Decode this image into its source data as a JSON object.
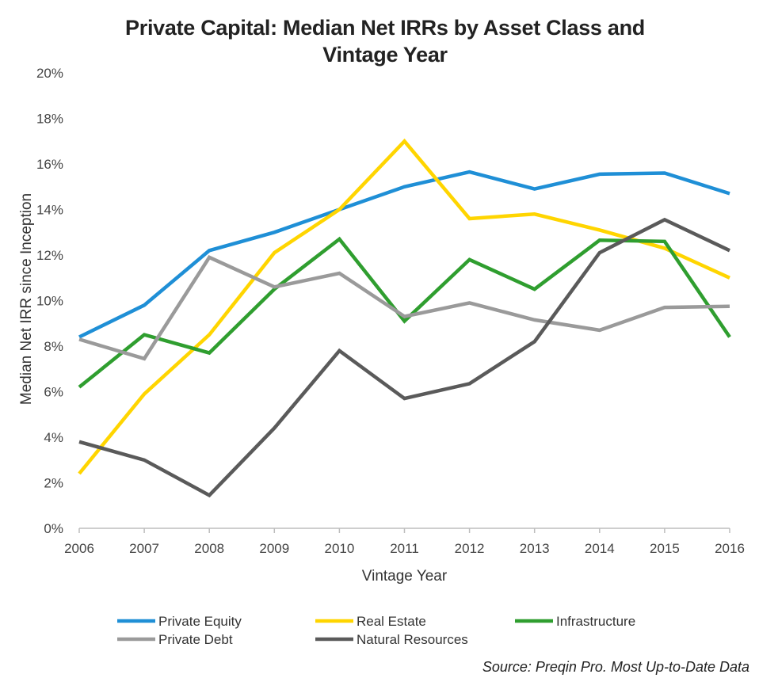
{
  "chart_data": {
    "type": "line",
    "title_lines": [
      "Private Capital: Median Net IRRs by Asset Class and",
      "Vintage Year"
    ],
    "xlabel": "Vintage Year",
    "ylabel": "Median Net IRR since Inception",
    "x": [
      "2006",
      "2007",
      "2008",
      "2009",
      "2010",
      "2011",
      "2012",
      "2013",
      "2014",
      "2015",
      "2016"
    ],
    "ylim": [
      0,
      20
    ],
    "yticks": [
      0,
      2,
      4,
      6,
      8,
      10,
      12,
      14,
      16,
      18,
      20
    ],
    "ytick_suffix": "%",
    "grid": false,
    "legend_position": "bottom",
    "series": [
      {
        "name": "Private Equity",
        "color": "#1f8fd6",
        "values": [
          8.4,
          9.8,
          12.2,
          13.0,
          14.0,
          15.0,
          15.65,
          14.9,
          15.55,
          15.6,
          14.7
        ]
      },
      {
        "name": "Real Estate",
        "color": "#ffd500",
        "values": [
          2.4,
          5.9,
          8.5,
          12.1,
          14.0,
          17.0,
          13.6,
          13.8,
          13.1,
          12.3,
          11.0
        ]
      },
      {
        "name": "Infrastructure",
        "color": "#2f9e2f",
        "values": [
          6.2,
          8.5,
          7.7,
          10.5,
          12.7,
          9.1,
          11.8,
          10.5,
          12.65,
          12.6,
          8.4
        ]
      },
      {
        "name": "Private Debt",
        "color": "#9a9a9a",
        "values": [
          8.3,
          7.45,
          11.9,
          10.6,
          11.2,
          9.3,
          9.9,
          9.15,
          8.7,
          9.7,
          9.75
        ]
      },
      {
        "name": "Natural Resources",
        "color": "#5a5a5a",
        "values": [
          3.8,
          3.0,
          1.45,
          4.4,
          7.8,
          5.7,
          6.35,
          8.2,
          12.1,
          13.55,
          12.2
        ]
      }
    ]
  },
  "source_note": "Source: Preqin Pro. Most Up-to-Date Data"
}
